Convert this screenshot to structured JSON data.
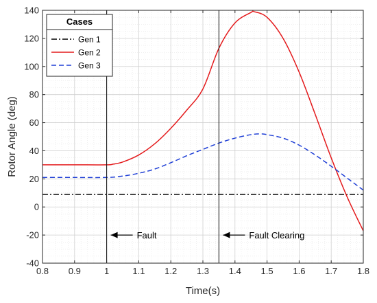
{
  "chart_data": {
    "type": "line",
    "xlabel": "Time(s)",
    "ylabel": "Rotor Angle (deg)",
    "xlim": [
      0.8,
      1.8
    ],
    "ylim": [
      -40,
      140
    ],
    "xticks": [
      0.8,
      0.9,
      1.0,
      1.1,
      1.2,
      1.3,
      1.4,
      1.5,
      1.6,
      1.7,
      1.8
    ],
    "xtick_labels": [
      "0.8",
      "0.9",
      "1",
      "1.1",
      "1.2",
      "1.3",
      "1.4",
      "1.5",
      "1.6",
      "1.7",
      "1.8"
    ],
    "yticks": [
      -40,
      -20,
      0,
      20,
      40,
      60,
      80,
      100,
      120,
      140
    ],
    "ytick_labels": [
      "-40",
      "-20",
      "0",
      "20",
      "40",
      "60",
      "80",
      "100",
      "120",
      "140"
    ],
    "grid": "major and minor",
    "legend": {
      "title": "Cases",
      "placement": "top-left"
    },
    "series": [
      {
        "name": "Gen 1",
        "color": "#000000",
        "style": "dash-dot",
        "x": [
          0.8,
          1.0,
          1.2,
          1.4,
          1.6,
          1.8
        ],
        "y": [
          9,
          9,
          9,
          9,
          9,
          9
        ]
      },
      {
        "name": "Gen 2",
        "color": "#e41a1c",
        "style": "solid",
        "x": [
          0.8,
          0.9,
          1.0,
          1.02,
          1.05,
          1.1,
          1.15,
          1.2,
          1.25,
          1.3,
          1.35,
          1.4,
          1.45,
          1.46,
          1.5,
          1.55,
          1.6,
          1.65,
          1.7,
          1.75,
          1.8
        ],
        "y": [
          30,
          30,
          30,
          30.5,
          32,
          37,
          45,
          56,
          69,
          84,
          113,
          131,
          138.5,
          139,
          135,
          120,
          96,
          66,
          35,
          7,
          -17
        ]
      },
      {
        "name": "Gen 3",
        "color": "#1f3fd6",
        "style": "dashed",
        "x": [
          0.8,
          0.9,
          1.0,
          1.05,
          1.1,
          1.15,
          1.2,
          1.25,
          1.3,
          1.35,
          1.4,
          1.45,
          1.48,
          1.5,
          1.55,
          1.6,
          1.65,
          1.7,
          1.75,
          1.8
        ],
        "y": [
          21,
          21,
          21,
          22,
          24,
          27,
          31.5,
          36.5,
          41,
          45.5,
          49,
          51.5,
          52,
          51.5,
          49,
          44,
          37,
          29,
          20.5,
          12
        ]
      }
    ],
    "vlines": [
      1.0,
      1.35
    ],
    "annotations": [
      {
        "text": "Fault",
        "x": 1.0,
        "y": -20
      },
      {
        "text": "Fault Clearing",
        "x": 1.35,
        "y": -20
      }
    ]
  }
}
